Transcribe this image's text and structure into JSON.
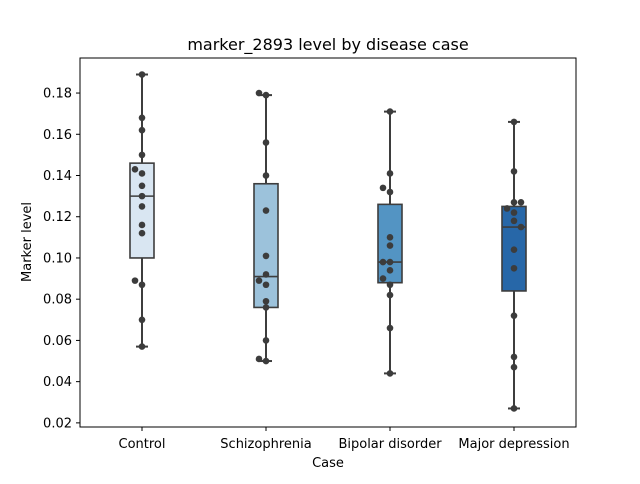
{
  "chart_data": {
    "type": "box",
    "title": "marker_2893 level by disease case",
    "xlabel": "Case",
    "ylabel": "Marker level",
    "ylim": [
      0.018,
      0.197
    ],
    "yticks": [
      0.02,
      0.04,
      0.06,
      0.08,
      0.1,
      0.12,
      0.14,
      0.16,
      0.18
    ],
    "ytick_labels": [
      "0.02",
      "0.04",
      "0.06",
      "0.08",
      "0.10",
      "0.12",
      "0.14",
      "0.16",
      "0.18"
    ],
    "categories": [
      "Control",
      "Schizophrenia",
      "Bipolar disorder",
      "Major depression"
    ],
    "colors": [
      "#d9e6f2",
      "#9cc2db",
      "#5394c3",
      "#2767a8"
    ],
    "boxes": [
      {
        "whisker_low": 0.057,
        "q1": 0.1,
        "median": 0.13,
        "q3": 0.146,
        "whisker_high": 0.189
      },
      {
        "whisker_low": 0.05,
        "q1": 0.076,
        "median": 0.091,
        "q3": 0.136,
        "whisker_high": 0.179
      },
      {
        "whisker_low": 0.044,
        "q1": 0.088,
        "median": 0.098,
        "q3": 0.126,
        "whisker_high": 0.171
      },
      {
        "whisker_low": 0.027,
        "q1": 0.084,
        "median": 0.115,
        "q3": 0.125,
        "whisker_high": 0.166
      }
    ],
    "points": [
      [
        {
          "dx": 0,
          "y": 0.189
        },
        {
          "dx": 0,
          "y": 0.168
        },
        {
          "dx": 0,
          "y": 0.162
        },
        {
          "dx": 0,
          "y": 0.15
        },
        {
          "dx": -1,
          "y": 0.143
        },
        {
          "dx": 0,
          "y": 0.141
        },
        {
          "dx": 0,
          "y": 0.135
        },
        {
          "dx": 0,
          "y": 0.13
        },
        {
          "dx": 0,
          "y": 0.125
        },
        {
          "dx": 0,
          "y": 0.116
        },
        {
          "dx": 0,
          "y": 0.112
        },
        {
          "dx": -1,
          "y": 0.089
        },
        {
          "dx": 0,
          "y": 0.087
        },
        {
          "dx": 0,
          "y": 0.07
        },
        {
          "dx": 0,
          "y": 0.057
        }
      ],
      [
        {
          "dx": -1,
          "y": 0.18
        },
        {
          "dx": 0,
          "y": 0.179
        },
        {
          "dx": 0,
          "y": 0.156
        },
        {
          "dx": 0,
          "y": 0.14
        },
        {
          "dx": 0,
          "y": 0.123
        },
        {
          "dx": 0,
          "y": 0.101
        },
        {
          "dx": 0,
          "y": 0.092
        },
        {
          "dx": -1,
          "y": 0.089
        },
        {
          "dx": 0,
          "y": 0.087
        },
        {
          "dx": 0,
          "y": 0.079
        },
        {
          "dx": 0,
          "y": 0.076
        },
        {
          "dx": 0,
          "y": 0.06
        },
        {
          "dx": -1,
          "y": 0.051
        },
        {
          "dx": 0,
          "y": 0.05
        }
      ],
      [
        {
          "dx": 0,
          "y": 0.171
        },
        {
          "dx": 0,
          "y": 0.141
        },
        {
          "dx": -1,
          "y": 0.134
        },
        {
          "dx": 0,
          "y": 0.132
        },
        {
          "dx": 0,
          "y": 0.11
        },
        {
          "dx": 0,
          "y": 0.106
        },
        {
          "dx": -1,
          "y": 0.098
        },
        {
          "dx": 0,
          "y": 0.098
        },
        {
          "dx": 0,
          "y": 0.094
        },
        {
          "dx": -1,
          "y": 0.09
        },
        {
          "dx": 0,
          "y": 0.087
        },
        {
          "dx": 0,
          "y": 0.082
        },
        {
          "dx": 0,
          "y": 0.066
        },
        {
          "dx": 0,
          "y": 0.044
        }
      ],
      [
        {
          "dx": 0,
          "y": 0.166
        },
        {
          "dx": 0,
          "y": 0.142
        },
        {
          "dx": 0,
          "y": 0.127
        },
        {
          "dx": 1,
          "y": 0.127
        },
        {
          "dx": -1,
          "y": 0.124
        },
        {
          "dx": 0,
          "y": 0.122
        },
        {
          "dx": 0,
          "y": 0.118
        },
        {
          "dx": 1,
          "y": 0.115
        },
        {
          "dx": 0,
          "y": 0.104
        },
        {
          "dx": 0,
          "y": 0.095
        },
        {
          "dx": 0,
          "y": 0.072
        },
        {
          "dx": 0,
          "y": 0.052
        },
        {
          "dx": 0,
          "y": 0.047
        },
        {
          "dx": 0,
          "y": 0.027
        }
      ]
    ]
  }
}
